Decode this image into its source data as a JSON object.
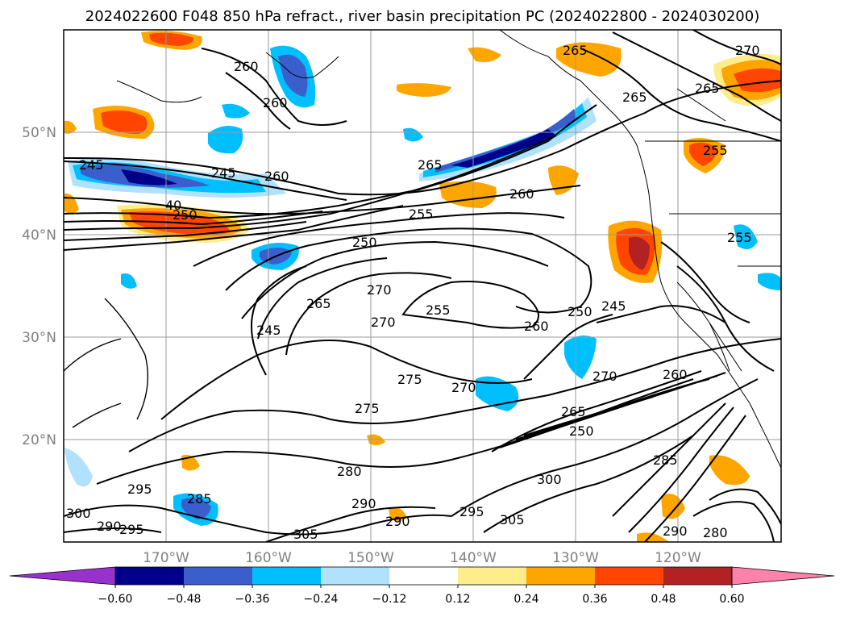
{
  "title": "2024022600 F048 850 hPa refract., river basin precipitation PC (2024022800 - 2024030200)",
  "lat_labels": [
    "50°N",
    "40°N",
    "30°N",
    "20°N"
  ],
  "lon_labels": [
    "170°W",
    "160°W",
    "150°W",
    "140°W",
    "130°W",
    "120°W"
  ],
  "colorbar": {
    "tick_labels": [
      "−0.60",
      "−0.48",
      "−0.36",
      "−0.24",
      "−0.12",
      "0.12",
      "0.24",
      "0.36",
      "0.48",
      "0.60"
    ],
    "colors": [
      "#9932cc",
      "#00008b",
      "#3a5fcd",
      "#00bfff",
      "#b0e2ff",
      "#ffffff",
      "#ffec8b",
      "#ffa500",
      "#ff4500",
      "#b22222",
      "#ff82ab"
    ]
  },
  "contour_labels": [
    "260",
    "260",
    "265",
    "265",
    "270",
    "265",
    "245",
    "245",
    "260",
    "265",
    "250",
    "260",
    "255",
    "255",
    "250",
    "265",
    "270",
    "255",
    "245",
    "270",
    "260",
    "250",
    "245",
    "275",
    "270",
    "275",
    "270",
    "260",
    "265",
    "250",
    "285",
    "280",
    "290",
    "300",
    "290",
    "295",
    "305",
    "285",
    "300",
    "295",
    "295",
    "290",
    "290",
    "280",
    "255",
    "40"
  ],
  "chart_data": {
    "type": "map",
    "field": "850 hPa refractivity contours with precipitation PC shading",
    "contour_interval": 5,
    "projection_extent": {
      "lon": [
        -178,
        -108
      ],
      "lat": [
        10,
        60
      ]
    },
    "levels": [
      -0.6,
      -0.48,
      -0.36,
      -0.24,
      -0.12,
      0.12,
      0.24,
      0.36,
      0.48,
      0.6
    ]
  }
}
